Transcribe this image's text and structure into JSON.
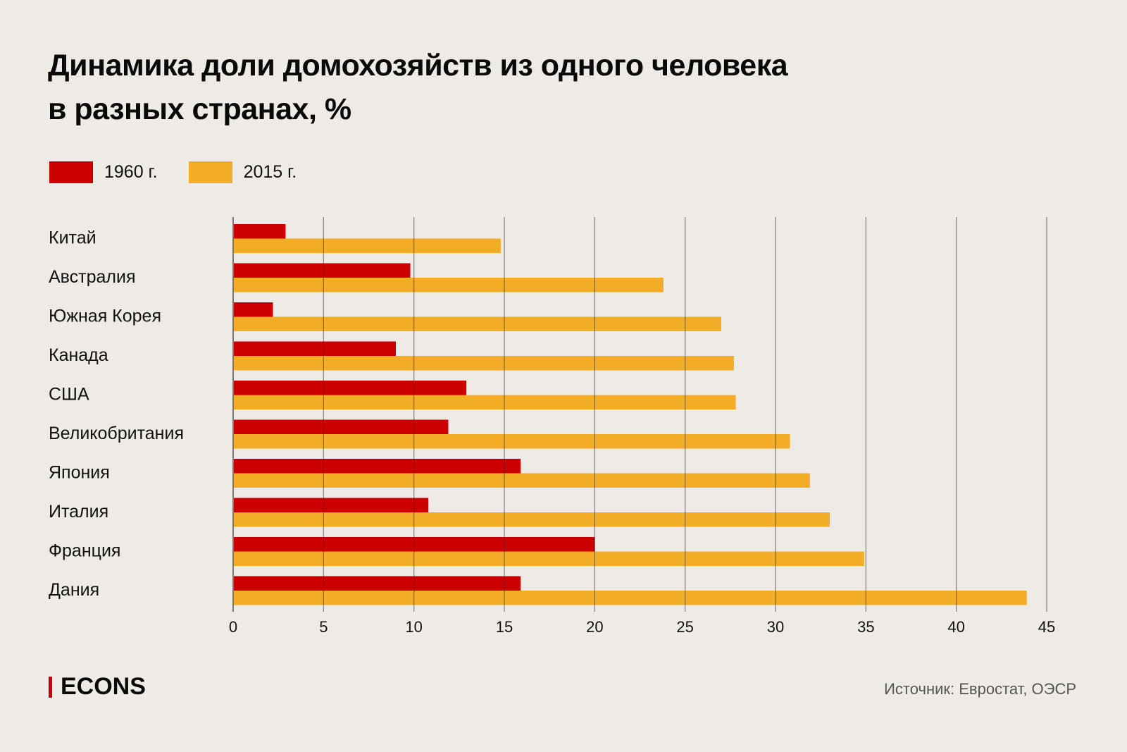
{
  "title_lines": [
    "Динамика доли домохозяйств из одного человека",
    "в разных странах, %"
  ],
  "legend": [
    {
      "label": "1960 г.",
      "color": "#cc0000"
    },
    {
      "label": "2015 г.",
      "color": "#f2ac25"
    }
  ],
  "logo": "ECONS",
  "source": "Источник: Евростат, ОЭСР",
  "chart_data": {
    "type": "bar",
    "orientation": "horizontal",
    "title": "Динамика доли домохозяйств из одного человека в разных странах, %",
    "categories": [
      "Китай",
      "Австралия",
      "Южная Корея",
      "Канада",
      "США",
      "Великобритания",
      "Япония",
      "Италия",
      "Франция",
      "Дания"
    ],
    "series": [
      {
        "name": "1960 г.",
        "color": "#cc0000",
        "values": [
          2.9,
          9.8,
          2.2,
          9.0,
          12.9,
          11.9,
          15.9,
          10.8,
          20.0,
          15.9
        ]
      },
      {
        "name": "2015 г.",
        "color": "#f2ac25",
        "values": [
          14.8,
          23.8,
          27.0,
          27.7,
          27.8,
          30.8,
          31.9,
          33.0,
          34.9,
          43.9
        ]
      }
    ],
    "xlim": [
      0,
      45
    ],
    "xticks": [
      0,
      5,
      10,
      15,
      20,
      25,
      30,
      35,
      40,
      45
    ],
    "xlabel": "",
    "ylabel": "",
    "grid": true,
    "legend_position": "top-left"
  }
}
